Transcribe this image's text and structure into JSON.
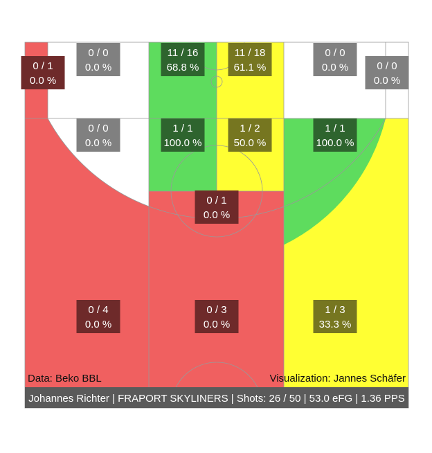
{
  "chart_data": {
    "type": "shot-chart",
    "title": "Johannes Richter | FRAPORT SKYLINERS | Shots: 26 / 50 | 53.0 eFG | 1.36 PPS",
    "source_note": "Data: Beko BBL",
    "credit_note": "Visualization: Jannes Schäfer",
    "colors": {
      "red": "#f06060",
      "green": "#5edc5e",
      "yellow": "#ffff33",
      "white": "#ffffff"
    },
    "zones": [
      {
        "id": "corner-left",
        "made": 0,
        "attempts": 1,
        "label": "0 / 1",
        "pct": "0.0 %",
        "color": "red"
      },
      {
        "id": "short-left-base",
        "made": 0,
        "attempts": 0,
        "label": "0 / 0",
        "pct": "0.0 %",
        "color": "white"
      },
      {
        "id": "paint-left",
        "made": 11,
        "attempts": 16,
        "label": "11 / 16",
        "pct": "68.8 %",
        "color": "green"
      },
      {
        "id": "paint-right",
        "made": 11,
        "attempts": 18,
        "label": "11 / 18",
        "pct": "61.1 %",
        "color": "yellow"
      },
      {
        "id": "short-right-base",
        "made": 0,
        "attempts": 0,
        "label": "0 / 0",
        "pct": "0.0 %",
        "color": "white"
      },
      {
        "id": "corner-right",
        "made": 0,
        "attempts": 0,
        "label": "0 / 0",
        "pct": "0.0 %",
        "color": "white"
      },
      {
        "id": "mid-left",
        "made": 0,
        "attempts": 0,
        "label": "0 / 0",
        "pct": "0.0 %",
        "color": "white"
      },
      {
        "id": "lane-left",
        "made": 1,
        "attempts": 1,
        "label": "1 / 1",
        "pct": "100.0 %",
        "color": "green"
      },
      {
        "id": "lane-right",
        "made": 1,
        "attempts": 2,
        "label": "1 / 2",
        "pct": "50.0 %",
        "color": "yellow"
      },
      {
        "id": "mid-right",
        "made": 1,
        "attempts": 1,
        "label": "1 / 1",
        "pct": "100.0 %",
        "color": "green"
      },
      {
        "id": "top-key",
        "made": 0,
        "attempts": 1,
        "label": "0 / 1",
        "pct": "0.0 %",
        "color": "red"
      },
      {
        "id": "three-left",
        "made": 0,
        "attempts": 4,
        "label": "0 / 4",
        "pct": "0.0 %",
        "color": "red"
      },
      {
        "id": "three-center",
        "made": 0,
        "attempts": 3,
        "label": "0 / 3",
        "pct": "0.0 %",
        "color": "red"
      },
      {
        "id": "three-right",
        "made": 1,
        "attempts": 3,
        "label": "1 / 3",
        "pct": "33.3 %",
        "color": "yellow"
      }
    ]
  }
}
